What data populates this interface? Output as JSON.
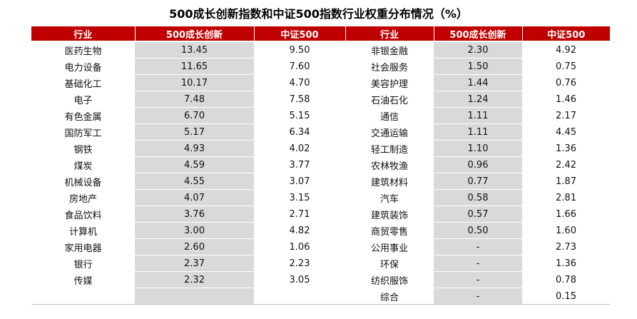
{
  "title": "500成长创新指数和中证500指数行业权重分布情况（%）",
  "headers": [
    "行业",
    "500成长创新",
    "中证500",
    "行业",
    "500成长创新",
    "中证500"
  ],
  "rows": [
    [
      "医药生物",
      "13.45",
      "9.50",
      "非银金融",
      "2.30",
      "4.92"
    ],
    [
      "电力设备",
      "11.65",
      "7.60",
      "社会服务",
      "1.50",
      "0.75"
    ],
    [
      "基础化工",
      "10.17",
      "4.70",
      "美容护理",
      "1.44",
      "0.76"
    ],
    [
      "电子",
      "7.48",
      "7.58",
      "石油石化",
      "1.24",
      "1.46"
    ],
    [
      "有色金属",
      "6.70",
      "5.15",
      "通信",
      "1.11",
      "2.17"
    ],
    [
      "国防军工",
      "5.17",
      "6.34",
      "交通运输",
      "1.11",
      "4.45"
    ],
    [
      "钢铁",
      "4.93",
      "4.02",
      "轻工制造",
      "1.10",
      "1.36"
    ],
    [
      "煤炭",
      "4.59",
      "3.77",
      "农林牧渔",
      "0.96",
      "2.42"
    ],
    [
      "机械设备",
      "4.55",
      "3.07",
      "建筑材料",
      "0.77",
      "1.87"
    ],
    [
      "房地产",
      "4.07",
      "3.15",
      "汽车",
      "0.58",
      "2.81"
    ],
    [
      "食品饮料",
      "3.76",
      "2.71",
      "建筑装饰",
      "0.57",
      "1.66"
    ],
    [
      "计算机",
      "3.00",
      "4.82",
      "商贸零售",
      "0.50",
      "1.60"
    ],
    [
      "家用电器",
      "2.60",
      "1.06",
      "公用事业",
      "-",
      "2.73"
    ],
    [
      "银行",
      "2.37",
      "2.23",
      "环保",
      "-",
      "1.36"
    ],
    [
      "传媒",
      "2.32",
      "3.05",
      "纺织服饰",
      "-",
      "0.78"
    ],
    [
      "",
      "",
      "",
      "综合",
      "-",
      "0.15"
    ]
  ],
  "colors": {
    "header_bg": "#c00000",
    "shade": "#d9d9d9"
  }
}
